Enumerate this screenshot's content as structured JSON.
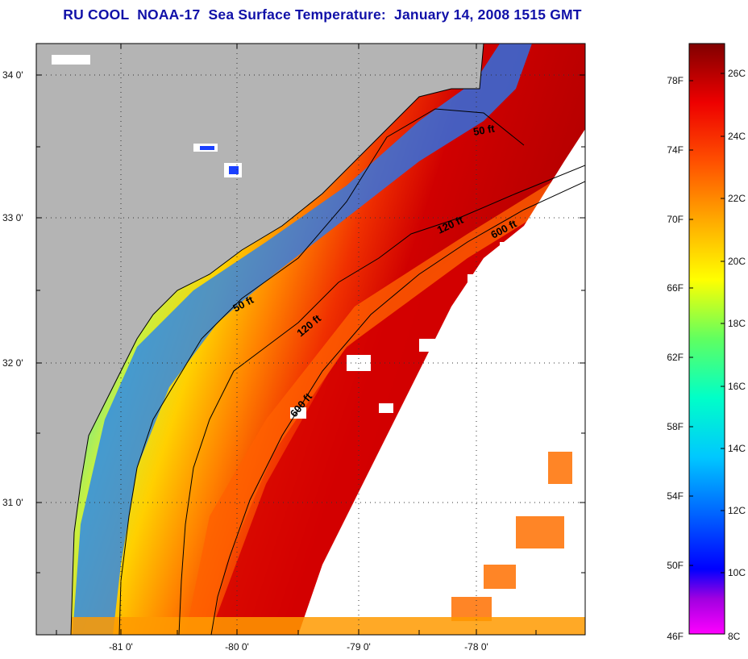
{
  "title": "RU COOL  NOAA-17  Sea Surface Temperature:  January 14, 2008 1515 GMT",
  "map": {
    "lat_ticks": [
      "34 0'",
      "33 0'",
      "32 0'",
      "31 0'"
    ],
    "lon_ticks": [
      "-81 0'",
      "-80 0'",
      "-79 0'",
      "-78 0'"
    ],
    "contour_labels": [
      "50 ft",
      "120 ft",
      "600 ft",
      "50 ft",
      "120 ft",
      "600 ft"
    ],
    "colors": {
      "land": "#b4b4b4",
      "cloud": "#ffffff",
      "frame": "#000000"
    }
  },
  "colorbar": {
    "fahrenheit_labels": [
      "78F",
      "74F",
      "70F",
      "66F",
      "62F",
      "58F",
      "54F",
      "50F",
      "46F"
    ],
    "celsius_labels": [
      "26C",
      "24C",
      "22C",
      "20C",
      "18C",
      "16C",
      "14C",
      "12C",
      "10C",
      "8C"
    ],
    "colors": [
      "#ff00ff",
      "#6a00d0",
      "#0000ff",
      "#0060ff",
      "#00c8ff",
      "#00ffc8",
      "#60ff60",
      "#ffff00",
      "#ffaa00",
      "#ff5000",
      "#ee0000",
      "#800000"
    ]
  }
}
